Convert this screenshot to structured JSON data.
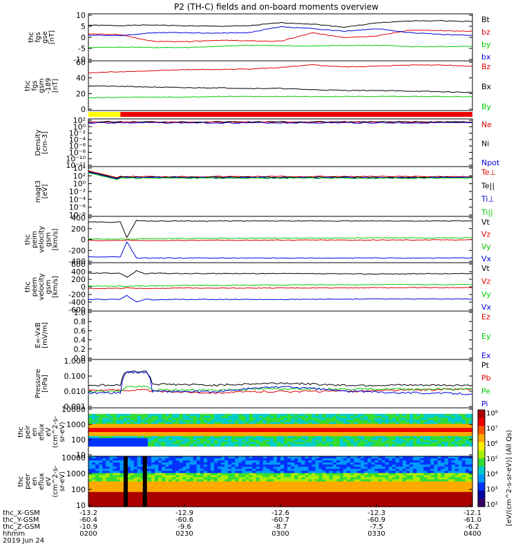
{
  "title": "P2 (TH-C) fields and on-board moments overview",
  "colors": {
    "black": "#000000",
    "red": "#dd0000",
    "green": "#00cc00",
    "blue": "#0000dd",
    "yellow": "#ffff00",
    "bar_red": "#ee0000"
  },
  "panels": [
    {
      "id": "fgs-gse",
      "ylabel": [
        "thc",
        "fgs",
        "gse",
        "[nT]"
      ],
      "yrange": [
        -10,
        10
      ],
      "ticks": [
        "10",
        "5",
        "0",
        "-5",
        "-10"
      ],
      "legend": [
        {
          "name": "Bt",
          "color": "#000000"
        },
        {
          "name": "bz",
          "color": "#dd0000"
        },
        {
          "name": "by",
          "color": "#00cc00"
        },
        {
          "name": "bx",
          "color": "#0000dd"
        }
      ]
    },
    {
      "id": "fgs-gsm",
      "ylabel": [
        "thc",
        "fgs",
        "gsm",
        "-189",
        "[nT]"
      ],
      "yrange": [
        -10,
        60
      ],
      "ticks": [
        "60",
        "40",
        "20",
        "0"
      ],
      "legend": [
        {
          "name": "Bz",
          "color": "#dd0000"
        },
        {
          "name": "Bx",
          "color": "#000000"
        },
        {
          "name": "By",
          "color": "#00cc00"
        }
      ]
    },
    {
      "id": "density",
      "ylabel": [
        "Density",
        "[cm-3]"
      ],
      "ticks": [
        "10²",
        "10⁰",
        "10⁻²",
        "10⁻⁴",
        "10⁻⁶",
        "10⁻⁸",
        "10⁻¹⁰",
        "10⁻¹²"
      ],
      "legend": [
        {
          "name": "Ne",
          "color": "#dd0000"
        },
        {
          "name": "Ni",
          "color": "#000000"
        },
        {
          "name": "Npot",
          "color": "#0000dd"
        }
      ]
    },
    {
      "id": "temperature",
      "ylabel": [
        "magt3",
        "[eV]"
      ],
      "ticks": [
        "10⁴",
        "10²",
        "10⁰",
        "10⁻²",
        "10⁻⁴",
        "10⁻⁶",
        "10⁻⁸"
      ],
      "legend": [
        {
          "name": "Te⊥",
          "color": "#dd0000"
        },
        {
          "name": "Te||",
          "color": "#000000"
        },
        {
          "name": "Ti⊥",
          "color": "#0000dd"
        },
        {
          "name": "Ti||",
          "color": "#00cc00"
        }
      ]
    },
    {
      "id": "peim-velocity",
      "ylabel": [
        "thc",
        "peim",
        "velocity",
        "gsm",
        "[km/s]"
      ],
      "yrange": [
        -400,
        400
      ],
      "ticks": [
        "400",
        "200",
        "0",
        "-200",
        "-400"
      ],
      "legend": [
        {
          "name": "Vt",
          "color": "#000000"
        },
        {
          "name": "Vz",
          "color": "#dd0000"
        },
        {
          "name": "Vy",
          "color": "#00cc00"
        },
        {
          "name": "Vx",
          "color": "#0000dd"
        }
      ]
    },
    {
      "id": "peem-velocity",
      "ylabel": [
        "thc",
        "peem",
        "velocity",
        "gsm",
        "[km/s]"
      ],
      "yrange": [
        -600,
        600
      ],
      "ticks": [
        "600",
        "400",
        "200",
        "0",
        "-200",
        "-400",
        "-600"
      ],
      "legend": [
        {
          "name": "Vt",
          "color": "#000000"
        },
        {
          "name": "Vz",
          "color": "#dd0000"
        },
        {
          "name": "Vy",
          "color": "#00cc00"
        },
        {
          "name": "Vx",
          "color": "#0000dd"
        }
      ]
    },
    {
      "id": "efield",
      "ylabel": [
        "E=-VxB",
        "[mV/m]"
      ],
      "yrange": [
        0,
        1
      ],
      "ticks": [
        "1.0",
        "0.8",
        "0.6",
        "0.4",
        "0.2",
        "0.0"
      ],
      "legend": [
        {
          "name": "Ez",
          "color": "#dd0000"
        },
        {
          "name": "Ey",
          "color": "#00cc00"
        },
        {
          "name": "Ex",
          "color": "#0000dd"
        }
      ]
    },
    {
      "id": "pressure",
      "ylabel": [
        "Pressure",
        "[nPa]"
      ],
      "ticks": [
        "1.000",
        "0.100",
        "0.010",
        "0.001"
      ],
      "legend": [
        {
          "name": "Pt",
          "color": "#000000"
        },
        {
          "name": "Pb",
          "color": "#dd0000"
        },
        {
          "name": "Pe",
          "color": "#00cc00"
        },
        {
          "name": "Pi",
          "color": "#0000dd"
        }
      ]
    },
    {
      "id": "peir-spectrogram",
      "ylabel": [
        "thc",
        "peir",
        "en",
        "eflux",
        "eV",
        "(cm^2-s-",
        "sr-eV)"
      ],
      "ticks": [
        "10000",
        "1000",
        "100",
        "10"
      ]
    },
    {
      "id": "peer-spectrogram",
      "ylabel": [
        "thc",
        "peer",
        "en",
        "eflux",
        "eV",
        "(cm^2-s-",
        "sr-eV)"
      ],
      "ticks": [
        "10000",
        "1000",
        "100",
        "10"
      ]
    }
  ],
  "colorbar": {
    "label": "[eV/(cm^2-s-sr-eV)] (All Qs)",
    "ticks": [
      "10⁸",
      "10⁷",
      "10⁶",
      "10⁵",
      "10⁴",
      "10³",
      "10²"
    ]
  },
  "xaxis": {
    "rows": [
      {
        "label": "thc_X-GSM",
        "values": [
          "-13.2",
          "-12.9",
          "-12.6",
          "-12.3",
          "-12.1"
        ]
      },
      {
        "label": "thc_Y-GSM",
        "values": [
          "-60.4",
          "-60.6",
          "-60.7",
          "-60.9",
          "-61.0"
        ]
      },
      {
        "label": "thc_Z-GSM",
        "values": [
          "-10.9",
          "-9.6",
          "-8.7",
          "-7.5",
          "-6.2"
        ]
      },
      {
        "label": "hhmm",
        "values": [
          "0200",
          "0230",
          "0300",
          "0330",
          "0400"
        ]
      }
    ],
    "date": "2019 Jun 24"
  },
  "chart_data": {
    "type": "line",
    "title": "P2 (TH-C) fields and on-board moments overview",
    "x_unit": "hhmm",
    "x_ticks": [
      "0200",
      "0230",
      "0300",
      "0330",
      "0400"
    ],
    "panels": [
      {
        "name": "fgs-gse",
        "ylim": [
          -10,
          10
        ],
        "x": [
          0,
          10,
          20,
          30,
          40,
          50,
          60,
          70,
          80,
          90,
          100,
          110,
          120
        ],
        "series": [
          {
            "name": "Bt",
            "values": [
              5.5,
              5.3,
              5.6,
              5.2,
              5.0,
              5.2,
              6.6,
              6.0,
              4.6,
              6.5,
              7.4,
              7.5,
              7.2
            ]
          },
          {
            "name": "bz",
            "values": [
              1.5,
              1.2,
              -1.8,
              -2.0,
              -1.3,
              -1.6,
              -1.8,
              2.0,
              0.0,
              0.6,
              3.2,
              3.0,
              2.7
            ]
          },
          {
            "name": "by",
            "values": [
              -4.6,
              -4.4,
              -4.6,
              -4.7,
              -4.1,
              -3.6,
              -3.8,
              -3.9,
              -3.7,
              -3.6,
              -4.2,
              -4.2,
              -4.0
            ]
          },
          {
            "name": "bx",
            "values": [
              1.0,
              0.8,
              2.1,
              2.1,
              1.9,
              2.1,
              4.8,
              3.9,
              2.8,
              3.9,
              2.2,
              1.3,
              0.9
            ]
          }
        ]
      },
      {
        "name": "fgs-gsm",
        "ylim": [
          -10,
          60
        ],
        "x": [
          0,
          10,
          20,
          30,
          40,
          50,
          60,
          70,
          80,
          90,
          100,
          110,
          120
        ],
        "series": [
          {
            "name": "Bz",
            "values": [
              44,
              46,
              47,
              49,
              49,
              50,
              52,
              56,
              53,
              54,
              56,
              56,
              54
            ]
          },
          {
            "name": "Bx",
            "values": [
              25,
              24,
              23,
              22,
              22,
              21,
              21,
              19,
              18,
              18,
              17,
              16,
              15
            ]
          },
          {
            "name": "By",
            "values": [
              7,
              8,
              8,
              8,
              9,
              9,
              9,
              9,
              9,
              9,
              9,
              9,
              9
            ]
          }
        ]
      },
      {
        "name": "peim-velocity",
        "ylim": [
          -400,
          400
        ],
        "x": [
          0,
          10,
          12,
          15,
          18,
          20,
          30,
          60,
          90,
          120
        ],
        "series": [
          {
            "name": "Vt",
            "values": [
              320,
              320,
              40,
              350,
              340,
              340,
              340,
              340,
              340,
              340
            ]
          },
          {
            "name": "Vz",
            "values": [
              -20,
              -20,
              -10,
              -15,
              -20,
              -20,
              -15,
              -10,
              -10,
              -5
            ]
          },
          {
            "name": "Vy",
            "values": [
              10,
              10,
              5,
              10,
              15,
              15,
              20,
              25,
              30,
              30
            ]
          },
          {
            "name": "Vx",
            "values": [
              -320,
              -320,
              -40,
              -340,
              -340,
              -340,
              -340,
              -340,
              -340,
              -340
            ]
          }
        ]
      },
      {
        "name": "peem-velocity",
        "ylim": [
          -600,
          600
        ],
        "x": [
          0,
          10,
          12,
          15,
          18,
          20,
          30,
          60,
          90,
          120
        ],
        "series": [
          {
            "name": "Vt",
            "values": [
              360,
              360,
              250,
              420,
              340,
              360,
              350,
              350,
              340,
              350
            ]
          },
          {
            "name": "Vz",
            "values": [
              -40,
              -40,
              -20,
              -50,
              -40,
              -40,
              -30,
              -30,
              -20,
              -20
            ]
          },
          {
            "name": "Vy",
            "values": [
              20,
              20,
              10,
              30,
              20,
              20,
              40,
              50,
              60,
              60
            ]
          },
          {
            "name": "Vx",
            "values": [
              -330,
              -330,
              -220,
              -400,
              -320,
              -340,
              -330,
              -330,
              -320,
              -320
            ]
          }
        ]
      },
      {
        "name": "pressure",
        "y_scale": "log",
        "ylim": [
          0.001,
          1
        ],
        "x": [
          0,
          10,
          12,
          18,
          20,
          40,
          60,
          80,
          100,
          120
        ],
        "series": [
          {
            "name": "Pt",
            "values": [
              0.025,
              0.025,
              0.2,
              0.2,
              0.03,
              0.025,
              0.035,
              0.025,
              0.025,
              0.025
            ]
          },
          {
            "name": "Pb",
            "values": [
              0.012,
              0.012,
              0.012,
              0.012,
              0.01,
              0.008,
              0.01,
              0.01,
              0.012,
              0.014
            ]
          },
          {
            "name": "Pe",
            "values": [
              0.01,
              0.01,
              0.02,
              0.02,
              0.012,
              0.012,
              0.015,
              0.014,
              0.014,
              0.014
            ]
          },
          {
            "name": "Pi",
            "values": [
              0.008,
              0.008,
              0.18,
              0.18,
              0.01,
              0.009,
              0.02,
              0.01,
              0.008,
              0.007
            ]
          }
        ]
      }
    ]
  }
}
